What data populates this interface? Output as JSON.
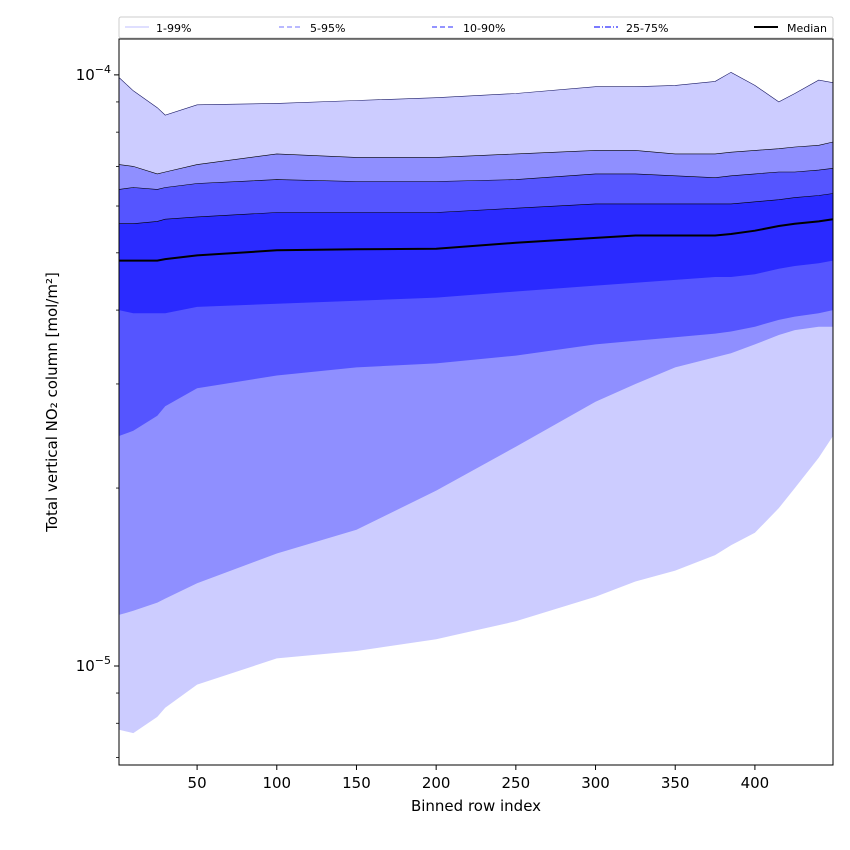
{
  "chart_data": {
    "type": "area",
    "title": "",
    "xlabel": "Binned row index",
    "ylabel": "Total vertical NO₂ column [mol/m²]",
    "y_scale": "log",
    "xlim": [
      1,
      449
    ],
    "ylim": [
      6.8e-06,
      0.000115
    ],
    "x_ticks": [
      50,
      100,
      150,
      200,
      250,
      300,
      350,
      400
    ],
    "x_tick_labels": [
      "50",
      "100",
      "150",
      "200",
      "250",
      "300",
      "350",
      "400"
    ],
    "y_major_ticks": [
      1e-05,
      0.0001
    ],
    "y_tick_labels": [
      {
        "base": "10",
        "exp": "−5"
      },
      {
        "base": "10",
        "exp": "−4"
      }
    ],
    "grid": false,
    "legend_position": "top",
    "x": [
      1,
      10,
      25,
      30,
      50,
      100,
      150,
      200,
      250,
      300,
      325,
      350,
      375,
      385,
      400,
      415,
      425,
      440,
      449
    ],
    "bands": [
      {
        "name": "1-99%",
        "color": "#ccccff",
        "lower": [
          7.8e-06,
          7.7e-06,
          8.2e-06,
          8.5e-06,
          9.3e-06,
          1.03e-05,
          1.06e-05,
          1.11e-05,
          1.19e-05,
          1.31e-05,
          1.39e-05,
          1.45e-05,
          1.54e-05,
          1.6e-05,
          1.68e-05,
          1.85e-05,
          2e-05,
          2.25e-05,
          2.45e-05
        ],
        "upper": [
          9.9e-05,
          9.4e-05,
          8.8e-05,
          8.55e-05,
          8.9e-05,
          8.95e-05,
          9.05e-05,
          9.15e-05,
          9.3e-05,
          9.55e-05,
          9.55e-05,
          9.6e-05,
          9.75e-05,
          0.000101,
          9.6e-05,
          9e-05,
          9.3e-05,
          9.8e-05,
          9.7e-05
        ]
      },
      {
        "name": "5-95%",
        "color": "#8f8fff",
        "lower": [
          1.22e-05,
          1.24e-05,
          1.28e-05,
          1.3e-05,
          1.38e-05,
          1.55e-05,
          1.7e-05,
          1.98e-05,
          2.35e-05,
          2.8e-05,
          3e-05,
          3.2e-05,
          3.33e-05,
          3.38e-05,
          3.5e-05,
          3.63e-05,
          3.7e-05,
          3.75e-05,
          3.75e-05
        ],
        "upper": [
          7.05e-05,
          7e-05,
          6.8e-05,
          6.85e-05,
          7.05e-05,
          7.35e-05,
          7.25e-05,
          7.25e-05,
          7.35e-05,
          7.45e-05,
          7.45e-05,
          7.35e-05,
          7.35e-05,
          7.4e-05,
          7.45e-05,
          7.5e-05,
          7.55e-05,
          7.6e-05,
          7.7e-05
        ]
      },
      {
        "name": "10-90%",
        "color": "#5555ff",
        "lower": [
          2.45e-05,
          2.5e-05,
          2.65e-05,
          2.75e-05,
          2.95e-05,
          3.1e-05,
          3.2e-05,
          3.25e-05,
          3.35e-05,
          3.5e-05,
          3.55e-05,
          3.6e-05,
          3.65e-05,
          3.68e-05,
          3.75e-05,
          3.85e-05,
          3.9e-05,
          3.95e-05,
          4e-05
        ],
        "upper": [
          6.4e-05,
          6.45e-05,
          6.4e-05,
          6.45e-05,
          6.55e-05,
          6.65e-05,
          6.6e-05,
          6.6e-05,
          6.65e-05,
          6.8e-05,
          6.8e-05,
          6.75e-05,
          6.7e-05,
          6.75e-05,
          6.8e-05,
          6.85e-05,
          6.85e-05,
          6.9e-05,
          6.95e-05
        ]
      },
      {
        "name": "25-75%",
        "color": "#2a2aff",
        "lower": [
          4e-05,
          3.95e-05,
          3.95e-05,
          3.95e-05,
          4.05e-05,
          4.1e-05,
          4.15e-05,
          4.2e-05,
          4.3e-05,
          4.4e-05,
          4.45e-05,
          4.5e-05,
          4.55e-05,
          4.55e-05,
          4.6e-05,
          4.7e-05,
          4.75e-05,
          4.8e-05,
          4.85e-05
        ],
        "upper": [
          5.6e-05,
          5.6e-05,
          5.65e-05,
          5.7e-05,
          5.75e-05,
          5.85e-05,
          5.85e-05,
          5.85e-05,
          5.95e-05,
          6.05e-05,
          6.05e-05,
          6.05e-05,
          6.05e-05,
          6.05e-05,
          6.1e-05,
          6.15e-05,
          6.2e-05,
          6.25e-05,
          6.3e-05
        ]
      }
    ],
    "median": {
      "name": "Median",
      "color": "#000000",
      "values": [
        4.85e-05,
        4.85e-05,
        4.85e-05,
        4.88e-05,
        4.95e-05,
        5.05e-05,
        5.07e-05,
        5.08e-05,
        5.2e-05,
        5.3e-05,
        5.35e-05,
        5.35e-05,
        5.35e-05,
        5.38e-05,
        5.45e-05,
        5.55e-05,
        5.6e-05,
        5.65e-05,
        5.7e-05
      ]
    },
    "legend": [
      {
        "label": "1-99%",
        "color": "#ccccff",
        "style": "solid"
      },
      {
        "label": "5-95%",
        "color": "#8f8fff",
        "style": "dashed"
      },
      {
        "label": "10-90%",
        "color": "#5555ff",
        "style": "dashed"
      },
      {
        "label": "25-75%",
        "color": "#2a2aff",
        "style": "dashdot"
      },
      {
        "label": "Median",
        "color": "#000000",
        "style": "solid"
      }
    ]
  }
}
